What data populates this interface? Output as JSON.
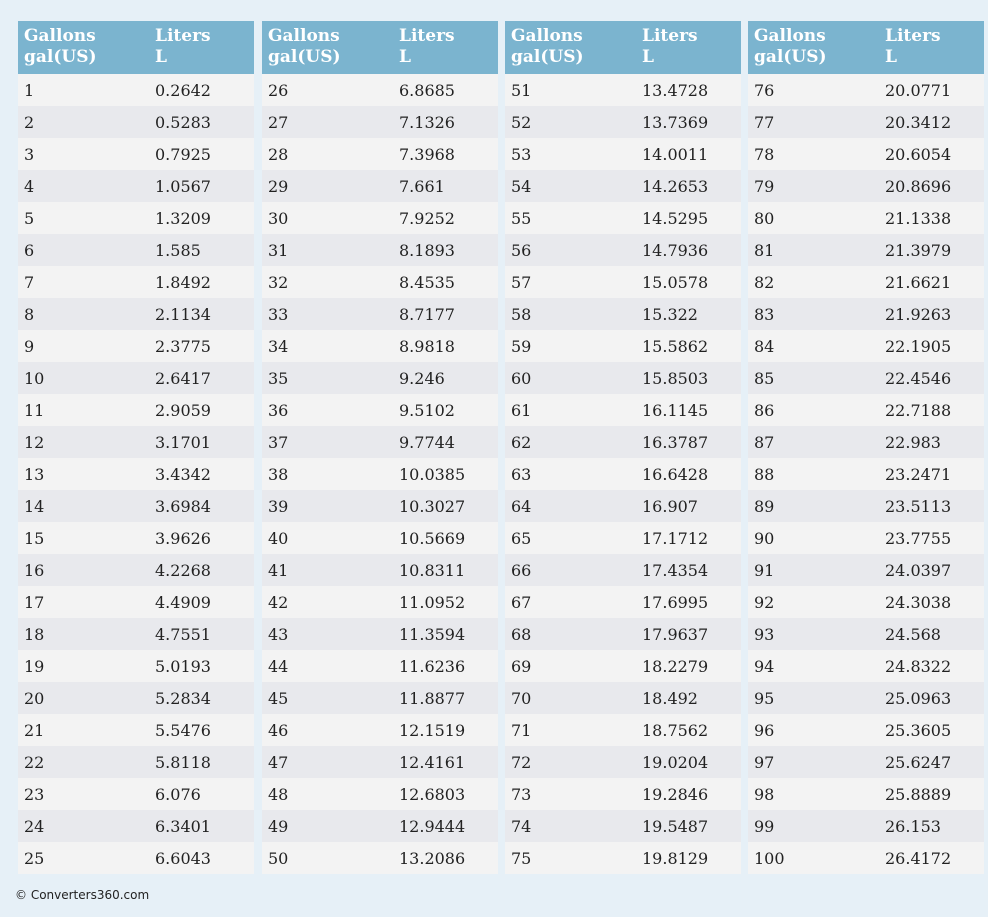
{
  "tables": [
    {
      "header": [
        {
          "title": "Gallons",
          "unit": "gal(US)"
        },
        {
          "title": "Liters",
          "unit": "L"
        }
      ],
      "rows": [
        [
          "1",
          "0.2642"
        ],
        [
          "2",
          "0.5283"
        ],
        [
          "3",
          "0.7925"
        ],
        [
          "4",
          "1.0567"
        ],
        [
          "5",
          "1.3209"
        ],
        [
          "6",
          "1.585"
        ],
        [
          "7",
          "1.8492"
        ],
        [
          "8",
          "2.1134"
        ],
        [
          "9",
          "2.3775"
        ],
        [
          "10",
          "2.6417"
        ],
        [
          "11",
          "2.9059"
        ],
        [
          "12",
          "3.1701"
        ],
        [
          "13",
          "3.4342"
        ],
        [
          "14",
          "3.6984"
        ],
        [
          "15",
          "3.9626"
        ],
        [
          "16",
          "4.2268"
        ],
        [
          "17",
          "4.4909"
        ],
        [
          "18",
          "4.7551"
        ],
        [
          "19",
          "5.0193"
        ],
        [
          "20",
          "5.2834"
        ],
        [
          "21",
          "5.5476"
        ],
        [
          "22",
          "5.8118"
        ],
        [
          "23",
          "6.076"
        ],
        [
          "24",
          "6.3401"
        ],
        [
          "25",
          "6.6043"
        ]
      ]
    },
    {
      "header": [
        {
          "title": "Gallons",
          "unit": "gal(US)"
        },
        {
          "title": "Liters",
          "unit": "L"
        }
      ],
      "rows": [
        [
          "26",
          "6.8685"
        ],
        [
          "27",
          "7.1326"
        ],
        [
          "28",
          "7.3968"
        ],
        [
          "29",
          "7.661"
        ],
        [
          "30",
          "7.9252"
        ],
        [
          "31",
          "8.1893"
        ],
        [
          "32",
          "8.4535"
        ],
        [
          "33",
          "8.7177"
        ],
        [
          "34",
          "8.9818"
        ],
        [
          "35",
          "9.246"
        ],
        [
          "36",
          "9.5102"
        ],
        [
          "37",
          "9.7744"
        ],
        [
          "38",
          "10.0385"
        ],
        [
          "39",
          "10.3027"
        ],
        [
          "40",
          "10.5669"
        ],
        [
          "41",
          "10.8311"
        ],
        [
          "42",
          "11.0952"
        ],
        [
          "43",
          "11.3594"
        ],
        [
          "44",
          "11.6236"
        ],
        [
          "45",
          "11.8877"
        ],
        [
          "46",
          "12.1519"
        ],
        [
          "47",
          "12.4161"
        ],
        [
          "48",
          "12.6803"
        ],
        [
          "49",
          "12.9444"
        ],
        [
          "50",
          "13.2086"
        ]
      ]
    },
    {
      "header": [
        {
          "title": "Gallons",
          "unit": "gal(US)"
        },
        {
          "title": "Liters",
          "unit": "L"
        }
      ],
      "rows": [
        [
          "51",
          "13.4728"
        ],
        [
          "52",
          "13.7369"
        ],
        [
          "53",
          "14.0011"
        ],
        [
          "54",
          "14.2653"
        ],
        [
          "55",
          "14.5295"
        ],
        [
          "56",
          "14.7936"
        ],
        [
          "57",
          "15.0578"
        ],
        [
          "58",
          "15.322"
        ],
        [
          "59",
          "15.5862"
        ],
        [
          "60",
          "15.8503"
        ],
        [
          "61",
          "16.1145"
        ],
        [
          "62",
          "16.3787"
        ],
        [
          "63",
          "16.6428"
        ],
        [
          "64",
          "16.907"
        ],
        [
          "65",
          "17.1712"
        ],
        [
          "66",
          "17.4354"
        ],
        [
          "67",
          "17.6995"
        ],
        [
          "68",
          "17.9637"
        ],
        [
          "69",
          "18.2279"
        ],
        [
          "70",
          "18.492"
        ],
        [
          "71",
          "18.7562"
        ],
        [
          "72",
          "19.0204"
        ],
        [
          "73",
          "19.2846"
        ],
        [
          "74",
          "19.5487"
        ],
        [
          "75",
          "19.8129"
        ]
      ]
    },
    {
      "header": [
        {
          "title": "Gallons",
          "unit": "gal(US)"
        },
        {
          "title": "Liters",
          "unit": "L"
        }
      ],
      "rows": [
        [
          "76",
          "20.0771"
        ],
        [
          "77",
          "20.3412"
        ],
        [
          "78",
          "20.6054"
        ],
        [
          "79",
          "20.8696"
        ],
        [
          "80",
          "21.1338"
        ],
        [
          "81",
          "21.3979"
        ],
        [
          "82",
          "21.6621"
        ],
        [
          "83",
          "21.9263"
        ],
        [
          "84",
          "22.1905"
        ],
        [
          "85",
          "22.4546"
        ],
        [
          "86",
          "22.7188"
        ],
        [
          "87",
          "22.983"
        ],
        [
          "88",
          "23.2471"
        ],
        [
          "89",
          "23.5113"
        ],
        [
          "90",
          "23.7755"
        ],
        [
          "91",
          "24.0397"
        ],
        [
          "92",
          "24.3038"
        ],
        [
          "93",
          "24.568"
        ],
        [
          "94",
          "24.8322"
        ],
        [
          "95",
          "25.0963"
        ],
        [
          "96",
          "25.3605"
        ],
        [
          "97",
          "25.6247"
        ],
        [
          "98",
          "25.8889"
        ],
        [
          "99",
          "26.153"
        ],
        [
          "100",
          "26.4172"
        ]
      ]
    }
  ],
  "footer": "© Converters360.com"
}
